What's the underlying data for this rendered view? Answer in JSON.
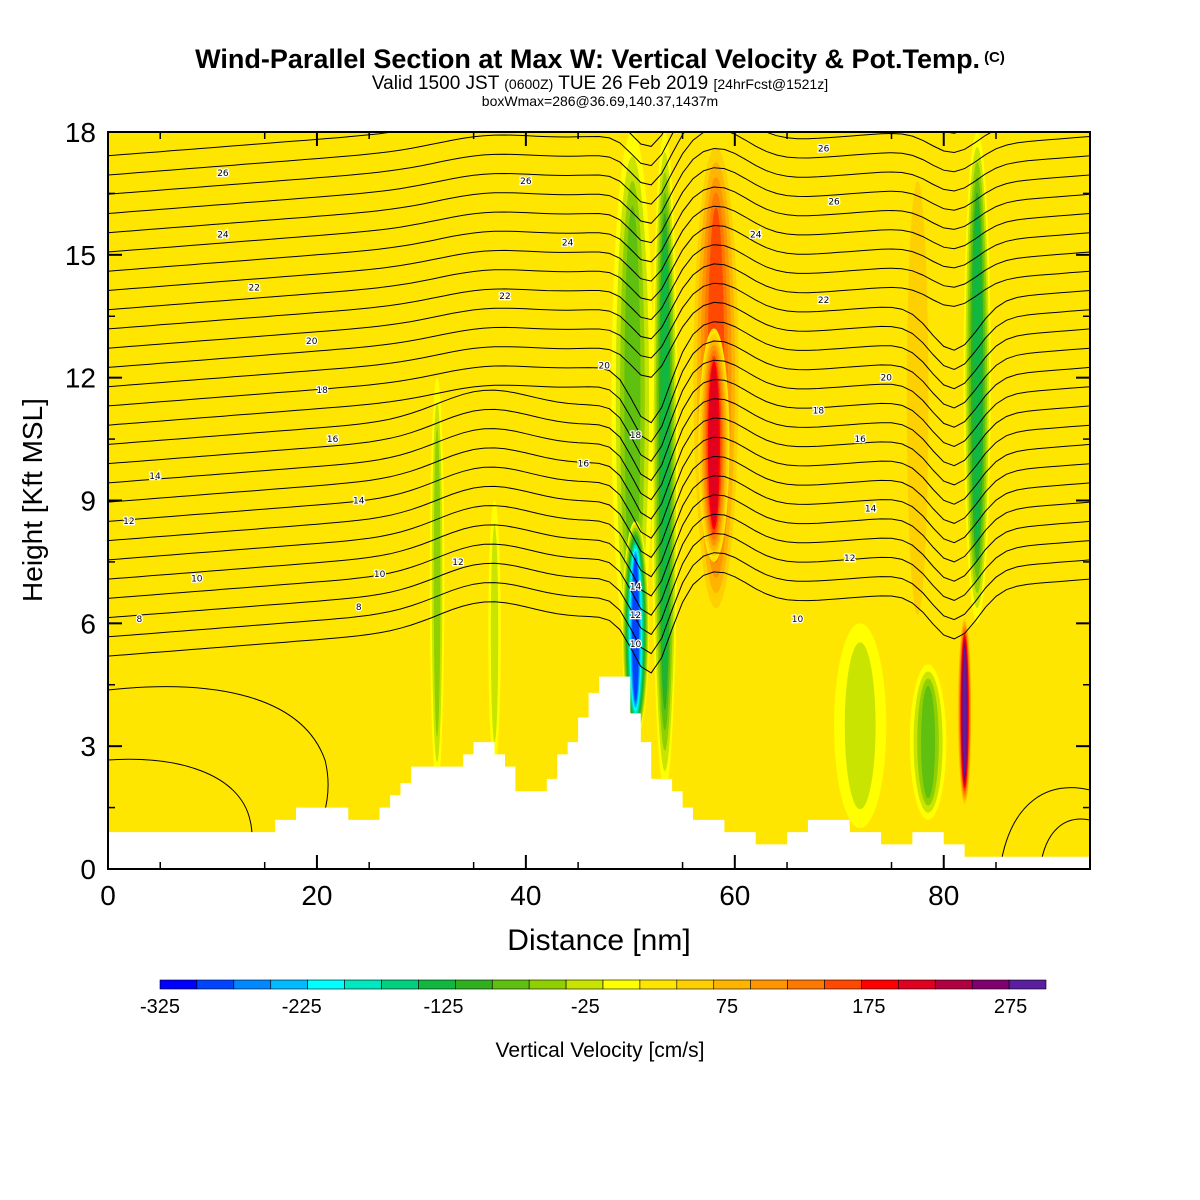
{
  "header": {
    "title": "Wind-Parallel Section at Max W: Vertical Velocity & Pot.Temp.",
    "copyright": "(C)",
    "valid_main": "Valid 1500 JST",
    "valid_utc": "(0600Z)",
    "valid_date": "TUE 26 Feb 2019",
    "valid_fcst": "[24hrFcst@1521z]",
    "box_w": "boxWmax=286@36.69,140.37,1437m"
  },
  "chart_data": {
    "type": "heatmap",
    "xlabel": "Distance [nm]",
    "ylabel": "Height [Kft MSL]",
    "xlim": [
      0,
      94
    ],
    "ylim": [
      0,
      18
    ],
    "x_ticks": [
      0,
      20,
      40,
      60,
      80
    ],
    "y_ticks": [
      0,
      3,
      6,
      9,
      12,
      15,
      18
    ],
    "colorbar": {
      "label": "Vertical Velocity [cm/s]",
      "min": -325,
      "max": 300,
      "step": 25,
      "tick_labels": [
        -325,
        -225,
        -125,
        -25,
        75,
        175,
        275
      ],
      "colors": [
        "#0000ff",
        "#0044ff",
        "#0088ff",
        "#00bbff",
        "#00ffff",
        "#00e8c0",
        "#00d080",
        "#10b840",
        "#30b020",
        "#60c010",
        "#90d000",
        "#c8e400",
        "#ffff00",
        "#ffe600",
        "#ffd000",
        "#ffb400",
        "#ff9600",
        "#ff7800",
        "#ff4800",
        "#ff0000",
        "#e00020",
        "#b00040",
        "#800070",
        "#5a1ea0"
      ]
    },
    "w_features": [
      {
        "x": 50.5,
        "y_bottom": 3.2,
        "y_top": 8.5,
        "width": 2.6,
        "w": -300
      },
      {
        "x": 50.2,
        "y_bottom": 5.0,
        "y_top": 18.0,
        "width": 4.0,
        "w": -120
      },
      {
        "x": 53.3,
        "y_bottom": 1.9,
        "y_top": 18.0,
        "width": 2.5,
        "w": -150
      },
      {
        "x": 58.2,
        "y_bottom": 6.0,
        "y_top": 18.0,
        "width": 5.0,
        "w": 170
      },
      {
        "x": 58.0,
        "y_bottom": 7.5,
        "y_top": 13.2,
        "width": 3.0,
        "w": 220
      },
      {
        "x": 83.2,
        "y_bottom": 6.0,
        "y_top": 18.0,
        "width": 2.6,
        "w": -150
      },
      {
        "x": 82.0,
        "y_bottom": 1.5,
        "y_top": 6.2,
        "width": 1.4,
        "w": 286
      },
      {
        "x": 78.5,
        "y_bottom": 1.2,
        "y_top": 5.0,
        "width": 3.5,
        "w": -110
      },
      {
        "x": 72.0,
        "y_bottom": 1.0,
        "y_top": 6.0,
        "width": 5.0,
        "w": -60
      },
      {
        "x": 31.5,
        "y_bottom": 2.0,
        "y_top": 12.0,
        "width": 1.4,
        "w": -90
      },
      {
        "x": 37.0,
        "y_bottom": 2.5,
        "y_top": 9.0,
        "width": 1.2,
        "w": -70
      },
      {
        "x": 47.0,
        "y_bottom": 4.5,
        "y_top": 18.0,
        "width": 3.0,
        "w": 25
      },
      {
        "x": 24.0,
        "y_bottom": 1.5,
        "y_top": 18.0,
        "width": 6.0,
        "w": 30
      },
      {
        "x": 34.0,
        "y_bottom": 3.0,
        "y_top": 18.0,
        "width": 4.0,
        "w": 40
      },
      {
        "x": 66.5,
        "y_bottom": 3.0,
        "y_top": 18.0,
        "width": 4.0,
        "w": 45
      },
      {
        "x": 77.5,
        "y_bottom": 5.0,
        "y_top": 18.0,
        "width": 3.5,
        "w": 60
      },
      {
        "x": 88.0,
        "y_bottom": 1.0,
        "y_top": 18.0,
        "width": 4.0,
        "w": 40
      }
    ],
    "terrain": [
      [
        0,
        0.9
      ],
      [
        16,
        0.9
      ],
      [
        16,
        1.2
      ],
      [
        18,
        1.2
      ],
      [
        18,
        1.5
      ],
      [
        23,
        1.5
      ],
      [
        23,
        1.2
      ],
      [
        26,
        1.2
      ],
      [
        26,
        1.5
      ],
      [
        27,
        1.5
      ],
      [
        27,
        1.8
      ],
      [
        28,
        1.8
      ],
      [
        28,
        2.1
      ],
      [
        29,
        2.1
      ],
      [
        29,
        2.5
      ],
      [
        34,
        2.5
      ],
      [
        34,
        2.8
      ],
      [
        35,
        2.8
      ],
      [
        35,
        3.1
      ],
      [
        37,
        3.1
      ],
      [
        37,
        2.8
      ],
      [
        38,
        2.8
      ],
      [
        38,
        2.5
      ],
      [
        39,
        2.5
      ],
      [
        39,
        1.9
      ],
      [
        42,
        1.9
      ],
      [
        42,
        2.2
      ],
      [
        43,
        2.2
      ],
      [
        43,
        2.8
      ],
      [
        44,
        2.8
      ],
      [
        44,
        3.1
      ],
      [
        45,
        3.1
      ],
      [
        45,
        3.7
      ],
      [
        46,
        3.7
      ],
      [
        46,
        4.3
      ],
      [
        47,
        4.3
      ],
      [
        47,
        4.7
      ],
      [
        50,
        4.7
      ],
      [
        50,
        3.8
      ],
      [
        51,
        3.8
      ],
      [
        51,
        3.1
      ],
      [
        52,
        3.1
      ],
      [
        52,
        2.2
      ],
      [
        54,
        2.2
      ],
      [
        54,
        1.9
      ],
      [
        55,
        1.9
      ],
      [
        55,
        1.5
      ],
      [
        56,
        1.5
      ],
      [
        56,
        1.2
      ],
      [
        59,
        1.2
      ],
      [
        59,
        0.9
      ],
      [
        62,
        0.9
      ],
      [
        62,
        0.6
      ],
      [
        65,
        0.6
      ],
      [
        65,
        0.9
      ],
      [
        67,
        0.9
      ],
      [
        67,
        1.2
      ],
      [
        71,
        1.2
      ],
      [
        71,
        0.9
      ],
      [
        74,
        0.9
      ],
      [
        74,
        0.6
      ],
      [
        77,
        0.6
      ],
      [
        77,
        0.9
      ],
      [
        80,
        0.9
      ],
      [
        80,
        0.6
      ],
      [
        82,
        0.6
      ],
      [
        82,
        0.3
      ],
      [
        94,
        0.3
      ]
    ],
    "theta_labels": [
      {
        "v": "26",
        "x": 11,
        "y": 17.0
      },
      {
        "v": "24",
        "x": 11,
        "y": 15.5
      },
      {
        "v": "22",
        "x": 14,
        "y": 14.2
      },
      {
        "v": "20",
        "x": 19.5,
        "y": 12.9
      },
      {
        "v": "18",
        "x": 20.5,
        "y": 11.7
      },
      {
        "v": "16",
        "x": 21.5,
        "y": 10.5
      },
      {
        "v": "14",
        "x": 4.5,
        "y": 9.6
      },
      {
        "v": "14",
        "x": 24,
        "y": 9.0
      },
      {
        "v": "12",
        "x": 2,
        "y": 8.5
      },
      {
        "v": "12",
        "x": 33.5,
        "y": 7.5
      },
      {
        "v": "10",
        "x": 8.5,
        "y": 7.1
      },
      {
        "v": "10",
        "x": 26,
        "y": 7.2
      },
      {
        "v": "8",
        "x": 3,
        "y": 6.1
      },
      {
        "v": "8",
        "x": 24,
        "y": 6.4
      },
      {
        "v": "26",
        "x": 40,
        "y": 16.8
      },
      {
        "v": "24",
        "x": 44,
        "y": 15.3
      },
      {
        "v": "22",
        "x": 38,
        "y": 14.0
      },
      {
        "v": "20",
        "x": 47.5,
        "y": 12.3
      },
      {
        "v": "18",
        "x": 50.5,
        "y": 10.6
      },
      {
        "v": "16",
        "x": 45.5,
        "y": 9.9
      },
      {
        "v": "14",
        "x": 50.5,
        "y": 6.9
      },
      {
        "v": "12",
        "x": 50.5,
        "y": 6.2
      },
      {
        "v": "10",
        "x": 50.5,
        "y": 5.5
      },
      {
        "v": "26",
        "x": 68.5,
        "y": 17.6
      },
      {
        "v": "26",
        "x": 69.5,
        "y": 16.3
      },
      {
        "v": "24",
        "x": 62,
        "y": 15.5
      },
      {
        "v": "22",
        "x": 68.5,
        "y": 13.9
      },
      {
        "v": "20",
        "x": 74.5,
        "y": 12.0
      },
      {
        "v": "18",
        "x": 68,
        "y": 11.2
      },
      {
        "v": "16",
        "x": 72,
        "y": 10.5
      },
      {
        "v": "14",
        "x": 73,
        "y": 8.8
      },
      {
        "v": "12",
        "x": 71,
        "y": 7.6
      },
      {
        "v": "10",
        "x": 66,
        "y": 6.1
      }
    ]
  }
}
